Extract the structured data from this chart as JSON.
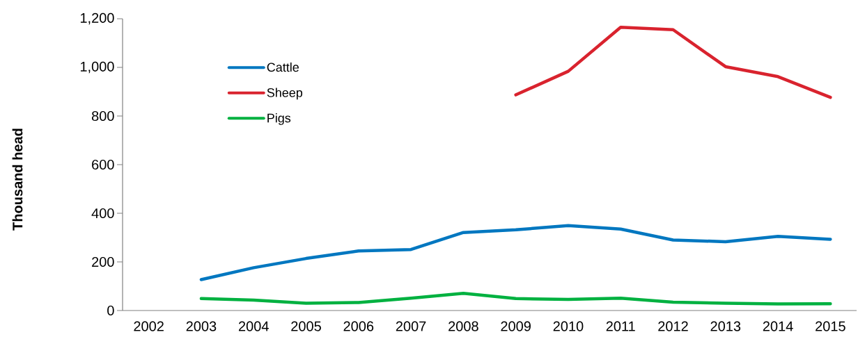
{
  "chart_data": {
    "type": "line",
    "ylabel": "Thousand head",
    "categories": [
      "2002",
      "2003",
      "2004",
      "2005",
      "2006",
      "2007",
      "2008",
      "2009",
      "2010",
      "2011",
      "2012",
      "2013",
      "2014",
      "2015"
    ],
    "series": [
      {
        "name": "Cattle",
        "color": "#0077c0",
        "values": [
          null,
          127,
          176,
          214,
          245,
          251,
          321,
          332,
          349,
          335,
          290,
          283,
          305,
          293
        ]
      },
      {
        "name": "Sheep",
        "color": "#d9232e",
        "values": [
          null,
          null,
          null,
          null,
          null,
          null,
          null,
          887,
          984,
          1165,
          1155,
          1003,
          962,
          877
        ]
      },
      {
        "name": "Pigs",
        "color": "#00b140",
        "values": [
          null,
          49,
          43,
          30,
          33,
          51,
          71,
          49,
          46,
          51,
          34,
          30,
          27,
          28
        ]
      }
    ],
    "ylim": [
      0,
      1200
    ],
    "yticks": [
      0,
      200,
      400,
      600,
      800,
      {
        "value": 1000,
        "label": "1,000"
      },
      {
        "value": 1200,
        "label": "1,200"
      }
    ],
    "grid": false,
    "legend": "top left",
    "marker": "none",
    "line_style": "solid"
  }
}
